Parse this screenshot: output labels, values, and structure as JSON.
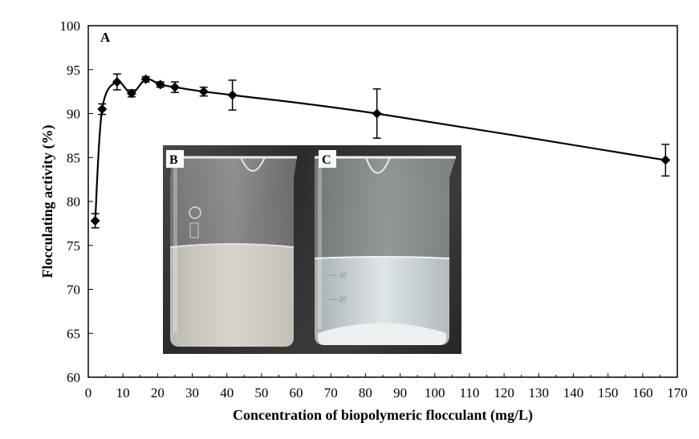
{
  "chart_data": {
    "type": "line",
    "panel_label": "A",
    "xlabel": "Concentration of biopolymeric flocculant (mg/L)",
    "ylabel": "Flocculating activity (%)",
    "xlim": [
      0,
      170
    ],
    "ylim": [
      60,
      100
    ],
    "x_ticks": [
      0,
      10,
      20,
      30,
      40,
      50,
      60,
      70,
      80,
      90,
      100,
      110,
      120,
      130,
      140,
      150,
      160,
      170
    ],
    "y_ticks": [
      60,
      65,
      70,
      75,
      80,
      85,
      90,
      95,
      100
    ],
    "grid": false,
    "marker": "diamond",
    "series": [
      {
        "name": "Flocculating activity",
        "x": [
          2,
          4,
          8.3,
          12.5,
          16.6,
          20.8,
          25,
          33.3,
          41.6,
          83.3,
          166.6
        ],
        "y": [
          77.8,
          90.5,
          93.6,
          92.3,
          93.9,
          93.3,
          93.0,
          92.5,
          92.1,
          90.0,
          84.7
        ],
        "error": [
          0.8,
          0.6,
          0.9,
          0.4,
          0.3,
          0.3,
          0.6,
          0.5,
          1.7,
          2.8,
          1.8
        ]
      }
    ],
    "insets": [
      {
        "label": "B",
        "description_color": "#cfcdc5"
      },
      {
        "label": "C",
        "description_color": "#e7ecee"
      }
    ],
    "beaker_scale_marks": [
      "40",
      "20"
    ]
  }
}
